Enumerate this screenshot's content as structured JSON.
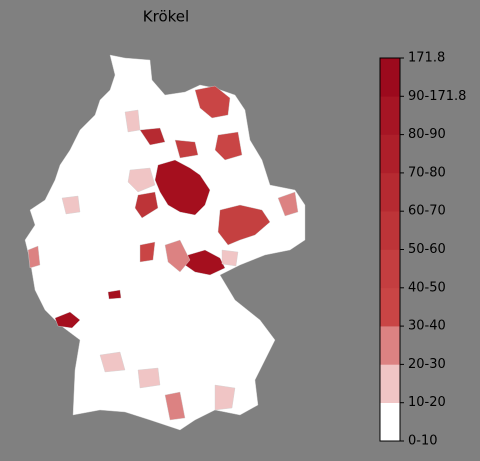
{
  "title": "Krökel",
  "colorbar": {
    "labels": [
      "0-10",
      "10-20",
      "20-30",
      "30-40",
      "40-50",
      "50-60",
      "60-70",
      "70-80",
      "80-90",
      "90-171.8",
      "171.8"
    ],
    "colors": [
      "#ffffff",
      "#f0c5c5",
      "#dc8282",
      "#c94545",
      "#c43e40",
      "#bd3438",
      "#b62a31",
      "#ae1f2a",
      "#a61524",
      "#9c0a1d"
    ]
  }
}
